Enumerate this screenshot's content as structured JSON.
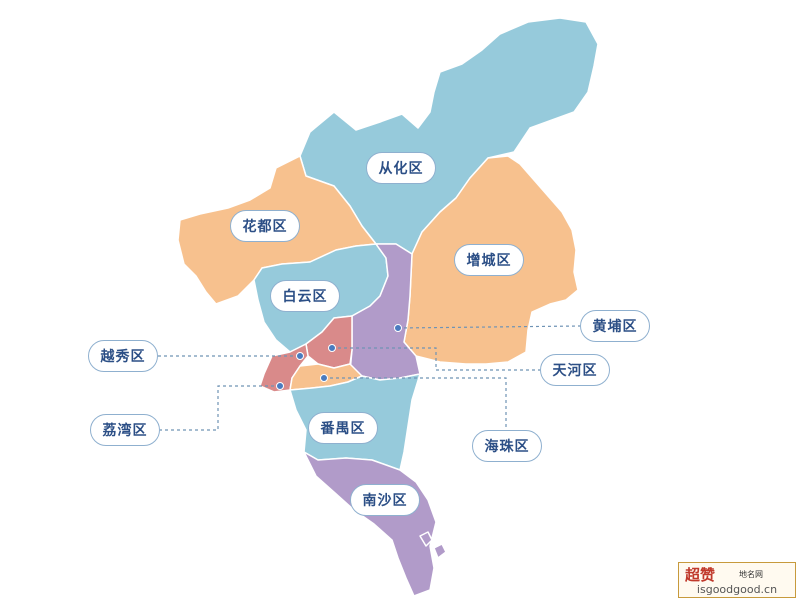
{
  "map": {
    "districts": [
      {
        "id": "conghua",
        "name": "从化区",
        "color": "#96cadb"
      },
      {
        "id": "huadu",
        "name": "花都区",
        "color": "#f7c18e"
      },
      {
        "id": "zengcheng",
        "name": "增城区",
        "color": "#f7c18e"
      },
      {
        "id": "baiyun",
        "name": "白云区",
        "color": "#96cadb"
      },
      {
        "id": "huangpu",
        "name": "黄埔区",
        "color": "#b19bc9"
      },
      {
        "id": "yuexiu",
        "name": "越秀区",
        "color": "#d98a8a"
      },
      {
        "id": "tianhe",
        "name": "天河区",
        "color": "#d98a8a"
      },
      {
        "id": "liwan",
        "name": "荔湾区",
        "color": "#d98a8a"
      },
      {
        "id": "haizhu",
        "name": "海珠区",
        "color": "#f7c18e"
      },
      {
        "id": "panyu",
        "name": "番禺区",
        "color": "#96cadb"
      },
      {
        "id": "nansha",
        "name": "南沙区",
        "color": "#b19bc9"
      }
    ],
    "colors": {
      "blue": "#96cadb",
      "orange": "#f7c18e",
      "purple": "#b19bc9",
      "red": "#d98a8a",
      "border": "#ffffff",
      "label_text": "#2c4f86",
      "label_border": "#8fb0cf",
      "leader_line": "#6f93b5"
    }
  },
  "watermark": {
    "brand": "超赞",
    "tagline": "地名网",
    "url": "isgoodgood.cn"
  }
}
